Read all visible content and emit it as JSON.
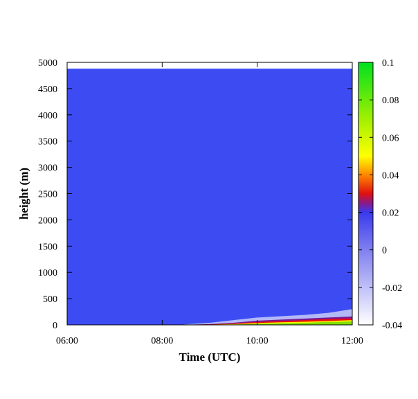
{
  "chart_data": {
    "type": "heatmap",
    "xlabel": "Time (UTC)",
    "ylabel": "height (m)",
    "x_tick_labels": [
      "06:00",
      "08:00",
      "10:00",
      "12:00"
    ],
    "x_ticks_hours": [
      6,
      8,
      10,
      12
    ],
    "xlim_hours": [
      6,
      12
    ],
    "ylim": [
      0,
      5000
    ],
    "y_ticks": [
      0,
      500,
      1000,
      1500,
      2000,
      2500,
      3000,
      3500,
      4000,
      4500,
      5000
    ],
    "y_data_top": 4880,
    "colorbar": {
      "range": [
        -0.04,
        0.1
      ],
      "ticks": [
        -0.04,
        -0.02,
        0,
        0.02,
        0.04,
        0.06,
        0.08,
        0.1
      ],
      "tick_labels": [
        "-0.04",
        "-0.02",
        "0",
        "0.02",
        "0.04",
        "0.06",
        "0.08",
        "0.1"
      ],
      "stops": [
        {
          "value": -0.04,
          "color": "#ffffff"
        },
        {
          "value": 0.0,
          "color": "#8080f0"
        },
        {
          "value": 0.02,
          "color": "#3a3aee"
        },
        {
          "value": 0.025,
          "color": "#8a1a8a"
        },
        {
          "value": 0.03,
          "color": "#e01010"
        },
        {
          "value": 0.04,
          "color": "#ff8800"
        },
        {
          "value": 0.05,
          "color": "#ffff00"
        },
        {
          "value": 0.07,
          "color": "#a0f000"
        },
        {
          "value": 0.1,
          "color": "#00e020"
        }
      ]
    },
    "background_value": 0.018,
    "background_color": "#3d4cf2",
    "surface_layer": {
      "time_hours": [
        8.4,
        9.0,
        9.5,
        10.0,
        10.5,
        11.0,
        11.5,
        12.0
      ],
      "green_top_m": [
        0,
        0,
        5,
        20,
        30,
        40,
        55,
        65
      ],
      "yellow_top_m": [
        0,
        5,
        15,
        35,
        50,
        60,
        75,
        90
      ],
      "red_top_m": [
        0,
        10,
        25,
        55,
        75,
        90,
        110,
        125
      ],
      "purple_top_m": [
        0,
        15,
        40,
        80,
        100,
        120,
        140,
        160
      ],
      "white_top_m": [
        5,
        40,
        90,
        140,
        165,
        190,
        230,
        300
      ]
    }
  }
}
